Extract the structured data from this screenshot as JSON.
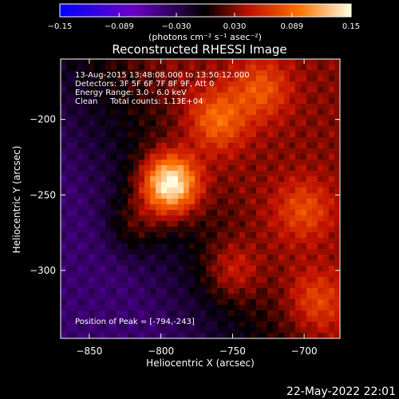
{
  "chart_data": {
    "type": "heatmap",
    "title": "Reconstructed RHESSI Image",
    "xlabel": "Heliocentric X (arcsec)",
    "ylabel": "Heliocentric Y (arcsec)",
    "xlim": [
      -870,
      -675
    ],
    "ylim": [
      -345,
      -160
    ],
    "xticks": [
      -850,
      -800,
      -750,
      -700
    ],
    "yticks": [
      -200,
      -250,
      -300
    ],
    "grid": false,
    "colorbar": {
      "label": "(photons cm⁻² s⁻¹ asec⁻²)",
      "range": [
        -0.15,
        0.15
      ],
      "ticks": [
        -0.15,
        -0.089,
        -0.03,
        0.03,
        0.089,
        0.15
      ],
      "tick_labels": [
        "−0.15",
        "−0.089",
        "−0.030",
        "0.030",
        "0.089",
        "0.15"
      ]
    },
    "annotations": [
      "13-Aug-2015 13:48:08.000 to 13:50:12.000",
      "Detectors: 3F 5F 6F 7F 8F 9F, Att 0",
      "Energy Range: 3.0 - 6.0 keV",
      "Clean     Total counts: 1.13E+04"
    ],
    "peak_label": "Position of Peak = [-794,-243]",
    "peak": [
      -794,
      -243
    ],
    "sources": [
      {
        "x": -794,
        "y": -243,
        "amp": 0.15
      },
      {
        "x": -760,
        "y": -200,
        "amp": 0.06
      },
      {
        "x": -730,
        "y": -180,
        "amp": 0.05
      },
      {
        "x": -700,
        "y": -260,
        "amp": 0.045
      },
      {
        "x": -690,
        "y": -320,
        "amp": 0.04
      },
      {
        "x": -750,
        "y": -300,
        "amp": 0.04
      },
      {
        "x": -820,
        "y": -270,
        "amp": 0.035
      }
    ],
    "background_left": -0.04,
    "background_right": 0.03
  },
  "footer": {
    "date": "22-May-2022 22:01"
  }
}
